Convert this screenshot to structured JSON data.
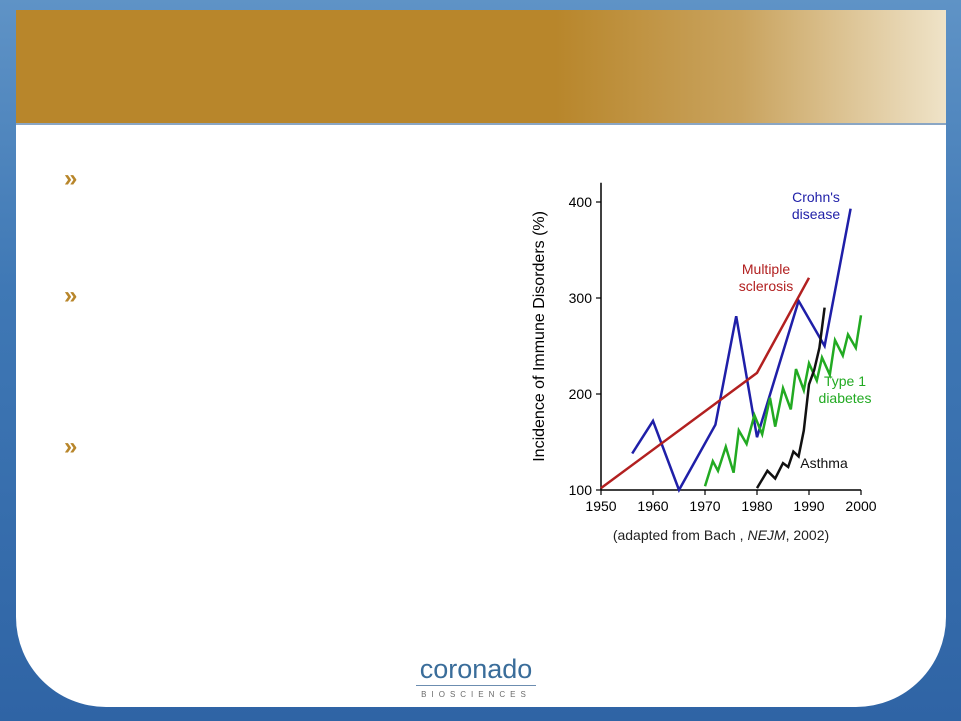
{
  "slide": {
    "bullets": [
      "»",
      "»",
      "»"
    ],
    "source_note": {
      "prefix": "(adapted from Bach , ",
      "journal": "NEJM",
      "suffix": ", 2002)"
    },
    "logo": {
      "wordmark": "coronado",
      "subtext": "BIOSCIENCES"
    }
  },
  "chart_data": {
    "type": "line",
    "ylabel": "Incidence of Immune Disorders (%)",
    "xlabel": "",
    "xlim": [
      1950,
      2000
    ],
    "ylim": [
      100,
      420
    ],
    "x_ticks": [
      1950,
      1960,
      1970,
      1980,
      1990,
      2000
    ],
    "y_ticks": [
      100,
      200,
      300,
      400
    ],
    "grid": false,
    "series": [
      {
        "name": "Crohn's disease",
        "label_lines": [
          "Crohn's",
          "disease"
        ],
        "color": "#1f1fa8",
        "x": [
          1956,
          1960,
          1965,
          1972,
          1976,
          1980,
          1988,
          1993,
          1998
        ],
        "y": [
          138,
          172,
          100,
          168,
          281,
          155,
          297,
          250,
          393
        ]
      },
      {
        "name": "Multiple sclerosis",
        "label_lines": [
          "Multiple",
          "sclerosis"
        ],
        "color": "#b22020",
        "x": [
          1950,
          1980,
          1990
        ],
        "y": [
          102,
          222,
          321
        ]
      },
      {
        "name": "Type 1 diabetes",
        "label_lines": [
          "Type 1",
          "diabetes"
        ],
        "color": "#22aa22",
        "x": [
          1970,
          1971.5,
          1972.5,
          1974,
          1975.5,
          1976.5,
          1978,
          1979.5,
          1981,
          1982.5,
          1983.5,
          1985,
          1986.5,
          1987.5,
          1989,
          1990,
          1991.5,
          1992.5,
          1994,
          1995,
          1996.5,
          1997.5,
          1999,
          2000
        ],
        "y": [
          104,
          130,
          120,
          145,
          118,
          162,
          148,
          178,
          158,
          196,
          166,
          206,
          184,
          226,
          204,
          232,
          214,
          238,
          220,
          256,
          240,
          262,
          248,
          282
        ]
      },
      {
        "name": "Asthma",
        "label_lines": [
          "Asthma"
        ],
        "color": "#111111",
        "x": [
          1980,
          1982,
          1983.5,
          1985,
          1986,
          1987,
          1988,
          1989,
          1990,
          1991,
          1992,
          1993
        ],
        "y": [
          102,
          120,
          112,
          128,
          124,
          140,
          135,
          162,
          210,
          225,
          248,
          290
        ]
      }
    ]
  }
}
